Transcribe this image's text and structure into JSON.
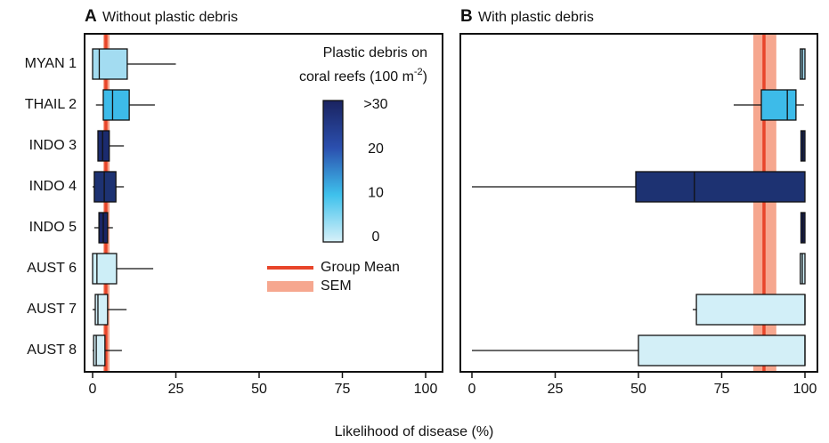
{
  "chart_data": {
    "type": "box",
    "xlabel": "Likelihood of disease (%)",
    "categories": [
      "MYAN 1",
      "THAIL 2",
      "INDO 3",
      "INDO 4",
      "INDO 5",
      "AUST 6",
      "AUST 7",
      "AUST 8"
    ],
    "colors": [
      "#a3dcf1",
      "#3dbbe9",
      "#1b2b6e",
      "#1d3272",
      "#1a2566",
      "#cdeef7",
      "#d2eff8",
      "#d3eff7"
    ],
    "mean_color": "#e8452a",
    "sem_color": "#f6a78f",
    "legend": {
      "mean": "Group Mean",
      "sem": "SEM"
    },
    "colorbar": {
      "title_line1": "Plastic debris on",
      "title_line2": "coral reefs (100 m",
      "title_sup": "-2",
      "title_end": ")",
      "lim": [
        0,
        30
      ],
      "ticks": [
        0,
        10,
        20,
        {
          "value": 30,
          "label": ">30"
        }
      ],
      "gradient": [
        "#d8f1f9",
        "#3ec1ec",
        "#2b4fae",
        "#1a2360"
      ]
    },
    "panels": [
      {
        "label": "A",
        "title": "Without plastic debris",
        "xlim": [
          0,
          100
        ],
        "xticks": [
          0,
          25,
          50,
          75,
          100
        ],
        "mean": 4,
        "sem": [
          3.2,
          5.1
        ],
        "boxes": [
          {
            "min": 0,
            "q1": 0,
            "median": 2,
            "q3": 10.4,
            "max": 25
          },
          {
            "min": 1,
            "q1": 3.2,
            "median": 6,
            "q3": 11,
            "max": 18.7
          },
          {
            "min": 1.6,
            "q1": 1.6,
            "median": 3,
            "q3": 5,
            "max": 9.4
          },
          {
            "min": 0,
            "q1": 0.5,
            "median": 3.5,
            "q3": 7,
            "max": 9.4
          },
          {
            "min": 0.5,
            "q1": 1.9,
            "median": 3.2,
            "q3": 4.5,
            "max": 6.1
          },
          {
            "min": 0,
            "q1": 0,
            "median": 1.3,
            "q3": 7.2,
            "max": 18.2
          },
          {
            "min": 0,
            "q1": 0.8,
            "median": 1.6,
            "q3": 4.5,
            "max": 10.2
          },
          {
            "min": 0,
            "q1": 0.3,
            "median": 1.1,
            "q3": 3.7,
            "max": 8.8
          }
        ]
      },
      {
        "label": "B",
        "title": "With plastic debris",
        "xlim": [
          0,
          100
        ],
        "xticks": [
          0,
          25,
          50,
          75,
          100
        ],
        "mean": 87.7,
        "sem": [
          84.5,
          91.4
        ],
        "boxes": [
          {
            "min": 98.6,
            "q1": 98.6,
            "median": 99.2,
            "q3": 100,
            "max": 100
          },
          {
            "min": 78.6,
            "q1": 86.9,
            "median": 94.7,
            "q3": 97.3,
            "max": 99.7
          },
          {
            "min": 98.8,
            "q1": 98.8,
            "median": 99.4,
            "q3": 100,
            "max": 100
          },
          {
            "min": 0,
            "q1": 49.2,
            "median": 66.8,
            "q3": 100,
            "max": 100
          },
          {
            "min": 98.8,
            "q1": 98.8,
            "median": 99.4,
            "q3": 100,
            "max": 100
          },
          {
            "min": 98.6,
            "q1": 98.6,
            "median": 99.2,
            "q3": 100,
            "max": 100
          },
          {
            "min": 66.3,
            "q1": 67.4,
            "median": 100,
            "q3": 100,
            "max": 100
          },
          {
            "min": 0,
            "q1": 50,
            "median": 100,
            "q3": 100,
            "max": 100
          }
        ]
      }
    ]
  }
}
